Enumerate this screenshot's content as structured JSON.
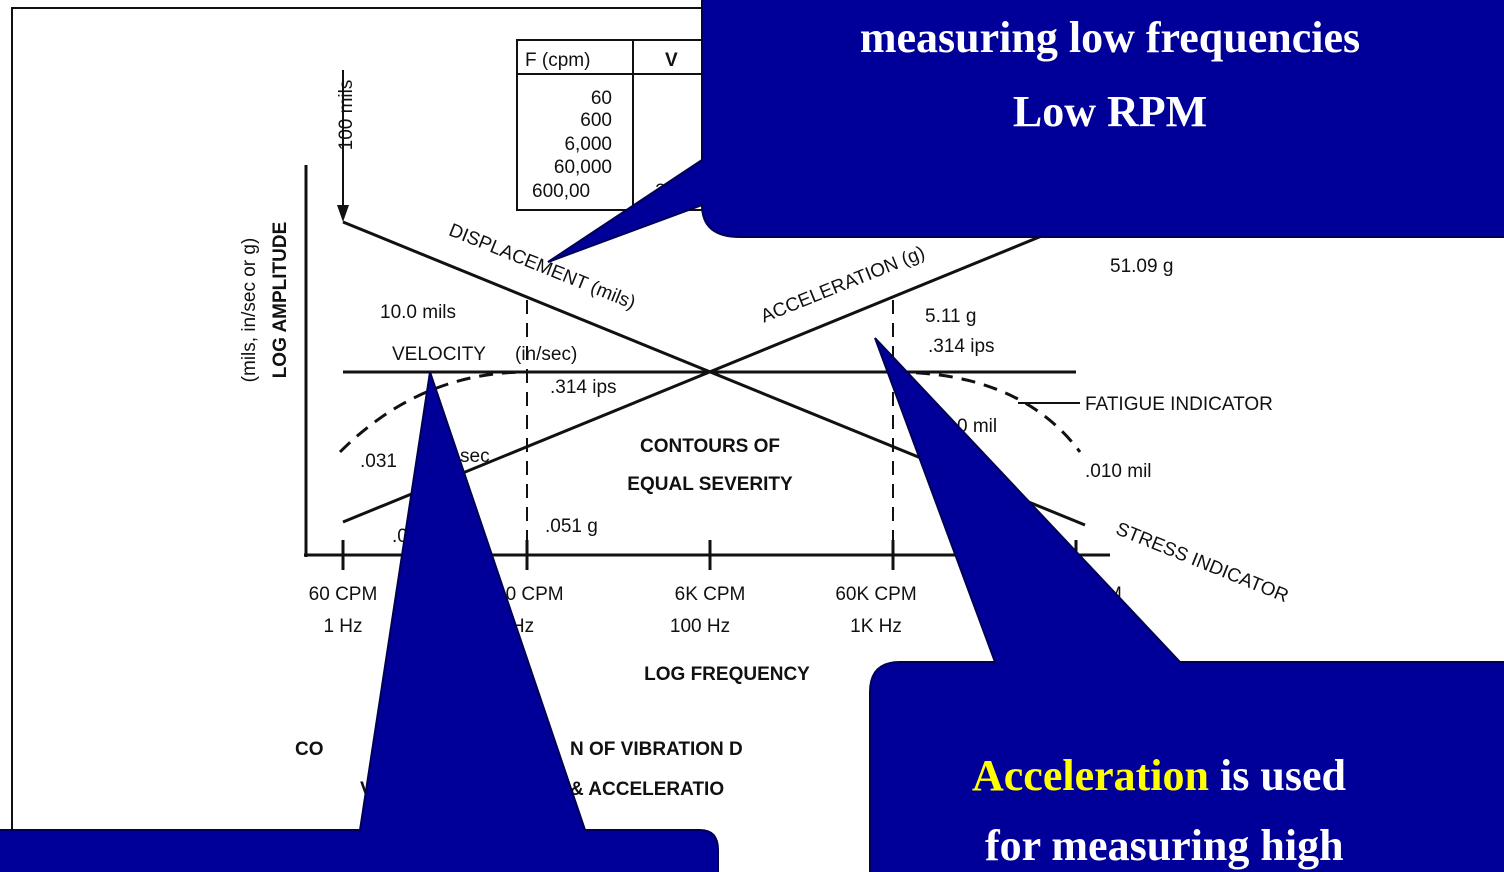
{
  "table": {
    "headers": [
      "F (cpm)",
      "V"
    ],
    "cpm": [
      "60",
      "600",
      "6,000",
      "60,000",
      "600,00"
    ],
    "v": [
      ".314"
    ]
  },
  "y_axis": {
    "units": "(mils, in/sec or g)",
    "title": "LOG AMPLITUDE"
  },
  "x_axis": {
    "title": "LOG FREQUENCY",
    "ticks": [
      {
        "cpm": "60 CPM",
        "hz": "1 Hz"
      },
      {
        "cpm": "00 CPM",
        "hz": "0 Hz"
      },
      {
        "cpm": "6K CPM",
        "hz": "100 Hz"
      },
      {
        "cpm": "60K CPM",
        "hz": "1K Hz"
      },
      {
        "cpm": "M"
      }
    ]
  },
  "labels": {
    "top_mils": "100 mils",
    "displacement": "DISPLACEMENT (mils)",
    "acceleration": "ACCELERATION (g)",
    "accel_high": "51.09 g",
    "disp_mid": "10.0 mils",
    "accel_mid": "5.11 g",
    "vel_right": ".314 ips",
    "velocity": "VELOCITY",
    "velocity_unit": "(in/sec)",
    "vel_mid": ".314 ips",
    "fatigue": "FATIGUE INDICATOR",
    "disp_low": "0 mil",
    "contours_1": "CONTOURS OF",
    "contours_2": "EQUAL SEVERITY",
    "vel_left": ".031",
    "vel_left_unit": "sec",
    "disp_end": ".010 mil",
    "stress": "STRESS INDICATOR",
    "accel_low": ".051 g",
    "accel_left": ".0"
  },
  "caption": [
    "CO",
    "N OF VIBRATION D",
    "V",
    "& ACCELERATIO"
  ],
  "callouts": [
    {
      "lines": [
        "measuring low frequencies",
        "Low RPM"
      ]
    },
    {
      "highlight": "Acceleration",
      "lines": [
        " is used",
        "for measuring high"
      ]
    }
  ]
}
